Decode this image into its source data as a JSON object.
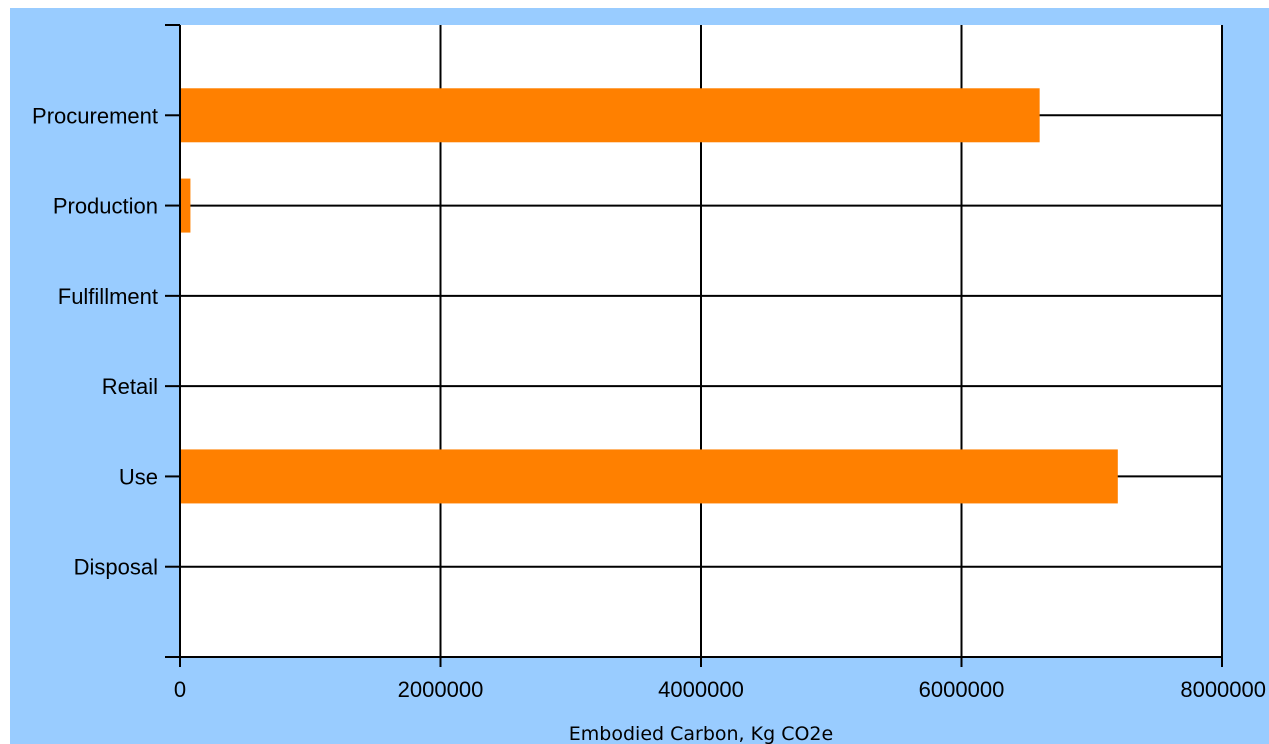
{
  "chart_data": {
    "type": "bar",
    "orientation": "horizontal",
    "categories": [
      "Procurement",
      "Production",
      "Fulfillment",
      "Retail",
      "Use",
      "Disposal"
    ],
    "values": [
      6600000,
      80000,
      0,
      0,
      7200000,
      0
    ],
    "xlabel": "Embodied Carbon, Kg CO2e",
    "ylabel": "",
    "xlim": [
      0,
      8000000
    ],
    "xticks": [
      0,
      2000000,
      4000000,
      6000000,
      8000000
    ],
    "xtick_labels": [
      "0",
      "2000000",
      "4000000",
      "6000000",
      "8000000"
    ],
    "grid": true,
    "bar_color": "#ff8000",
    "background_color": "#99ccff",
    "plot_background_color": "#ffffff"
  }
}
